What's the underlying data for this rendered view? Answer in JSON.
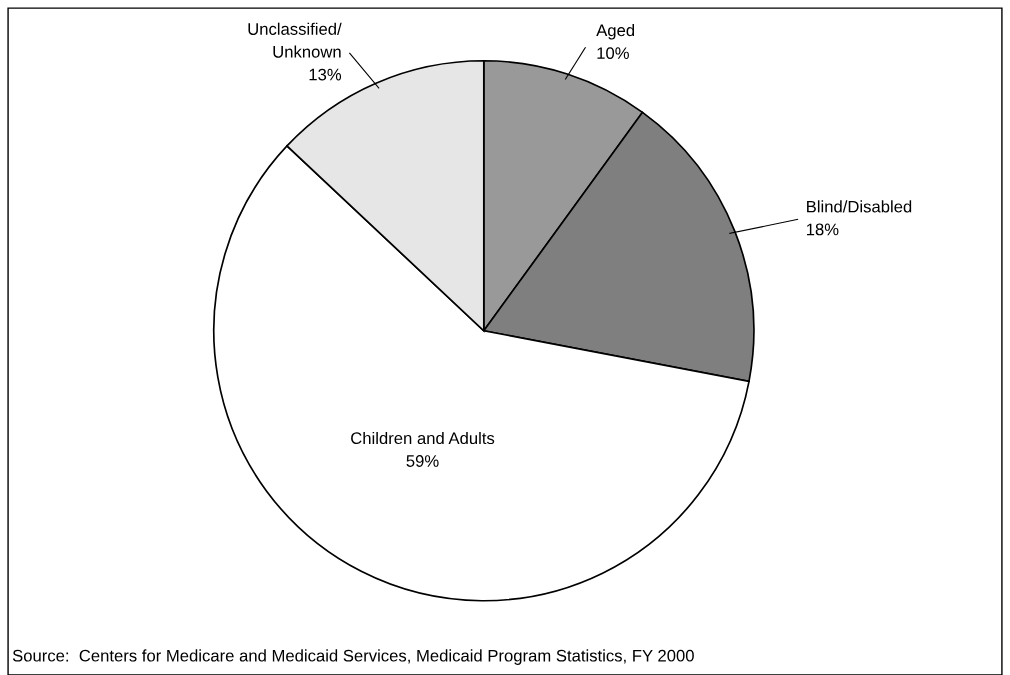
{
  "chart_data": {
    "type": "pie",
    "categories": [
      "Aged",
      "Blind/Disabled",
      "Children and Adults",
      "Unclassified/\nUnknown"
    ],
    "values": [
      10,
      18,
      59,
      13
    ],
    "colors": [
      "#999999",
      "#7f7f7f",
      "#ffffff",
      "#e6e6e6"
    ],
    "value_labels": [
      "10%",
      "18%",
      "59%",
      "13%"
    ],
    "annotations": [
      "Source:  Centers for Medicare and Medicaid Services, Medicaid Program Statistics, FY 2000"
    ]
  }
}
